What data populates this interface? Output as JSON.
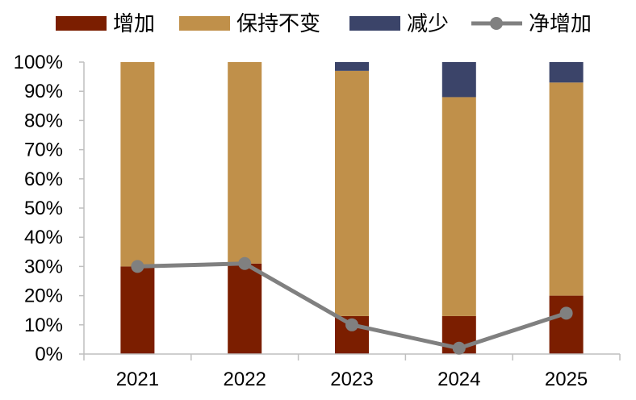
{
  "chart_data": {
    "type": "bar",
    "stacked": true,
    "categories": [
      "2021",
      "2022",
      "2023",
      "2024",
      "2025"
    ],
    "series": [
      {
        "name": "增加",
        "kind": "bar",
        "color": "#7B1E00",
        "values": [
          30,
          31,
          13,
          13,
          20
        ]
      },
      {
        "name": "保持不变",
        "kind": "bar",
        "color": "#C0904A",
        "values": [
          70,
          69,
          84,
          75,
          73
        ]
      },
      {
        "name": "减少",
        "kind": "bar",
        "color": "#3B4469",
        "values": [
          0,
          0,
          3,
          12,
          7
        ]
      },
      {
        "name": "净增加",
        "kind": "line",
        "color": "#808080",
        "values": [
          30,
          31,
          10,
          2,
          14
        ]
      }
    ],
    "ylim": [
      0,
      100
    ],
    "yticks": [
      "0%",
      "10%",
      "20%",
      "30%",
      "40%",
      "50%",
      "60%",
      "70%",
      "80%",
      "90%",
      "100%"
    ],
    "legend_position": "top",
    "grid": false
  }
}
